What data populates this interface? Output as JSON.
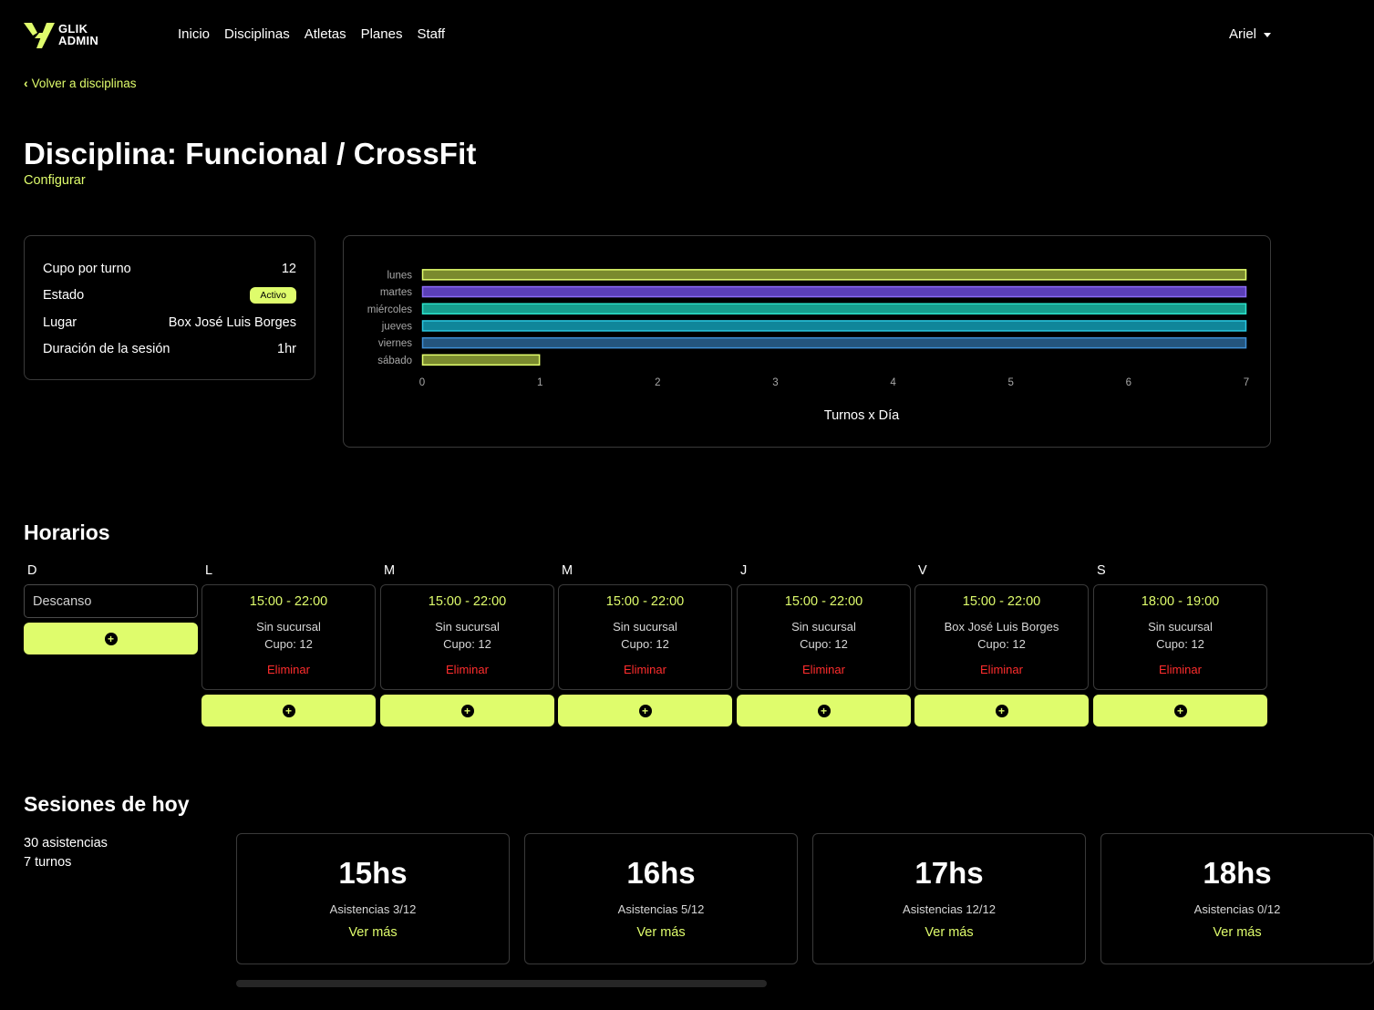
{
  "brand": {
    "line1": "GLIK",
    "line2": "ADMIN"
  },
  "nav": {
    "links": [
      "Inicio",
      "Disciplinas",
      "Atletas",
      "Planes",
      "Staff"
    ],
    "user": "Ariel"
  },
  "back_link": "Volver a disciplinas",
  "title": "Disciplina: Funcional / CrossFit",
  "configure_link": "Configurar",
  "info": {
    "rows": [
      {
        "label": "Cupo por turno",
        "value": "12"
      },
      {
        "label": "Estado",
        "value": "Activo"
      },
      {
        "label": "Lugar",
        "value": "Box José Luis Borges"
      },
      {
        "label": "Duración de la sesión",
        "value": "1hr"
      }
    ]
  },
  "chart_data": {
    "type": "bar",
    "orientation": "horizontal",
    "categories": [
      "lunes",
      "martes",
      "miércoles",
      "jueves",
      "viernes",
      "sábado"
    ],
    "values": [
      7,
      7,
      7,
      7,
      7,
      1
    ],
    "colors": [
      "#7a8a2e",
      "#5b3fb8",
      "#169e8e",
      "#10869a",
      "#24557e",
      "#7a8a2e"
    ],
    "border_colors": [
      "#e4ff6e",
      "#8b6cf5",
      "#2ce1c9",
      "#2bc7e0",
      "#3f8ed4",
      "#e4ff6e"
    ],
    "xlim": [
      0,
      7
    ],
    "xticks": [
      "0",
      "1",
      "2",
      "3",
      "4",
      "5",
      "6",
      "7"
    ],
    "xlabel": "Turnos x Día",
    "grid": false
  },
  "horarios": {
    "title": "Horarios",
    "rest_label": "Descanso",
    "delete_label": "Eliminar",
    "days": [
      {
        "letter": "D",
        "rest": true,
        "slots": []
      },
      {
        "letter": "L",
        "slots": [
          {
            "time": "15:00 - 22:00",
            "place": "Sin sucursal",
            "cupo": "Cupo: 12"
          }
        ]
      },
      {
        "letter": "M",
        "slots": [
          {
            "time": "15:00 - 22:00",
            "place": "Sin sucursal",
            "cupo": "Cupo: 12"
          }
        ]
      },
      {
        "letter": "M",
        "slots": [
          {
            "time": "15:00 - 22:00",
            "place": "Sin sucursal",
            "cupo": "Cupo: 12"
          }
        ]
      },
      {
        "letter": "J",
        "slots": [
          {
            "time": "15:00 - 22:00",
            "place": "Sin sucursal",
            "cupo": "Cupo: 12"
          }
        ]
      },
      {
        "letter": "V",
        "slots": [
          {
            "time": "15:00 - 22:00",
            "place": "Box José Luis Borges",
            "cupo": "Cupo: 12"
          }
        ]
      },
      {
        "letter": "S",
        "slots": [
          {
            "time": "18:00 - 19:00",
            "place": "Sin sucursal",
            "cupo": "Cupo: 12"
          }
        ]
      }
    ]
  },
  "sesiones": {
    "title": "Sesiones de hoy",
    "asistencias_total": "30 asistencias",
    "turnos_total": "7 turnos",
    "more_label": "Ver más",
    "cards": [
      {
        "hour": "15hs",
        "attendance": "Asistencias 3/12"
      },
      {
        "hour": "16hs",
        "attendance": "Asistencias 5/12"
      },
      {
        "hour": "17hs",
        "attendance": "Asistencias 12/12"
      },
      {
        "hour": "18hs",
        "attendance": "Asistencias 0/12"
      }
    ]
  },
  "colors": {
    "accent": "#dffc6c",
    "danger": "#ff2d2d",
    "background": "#000000"
  }
}
